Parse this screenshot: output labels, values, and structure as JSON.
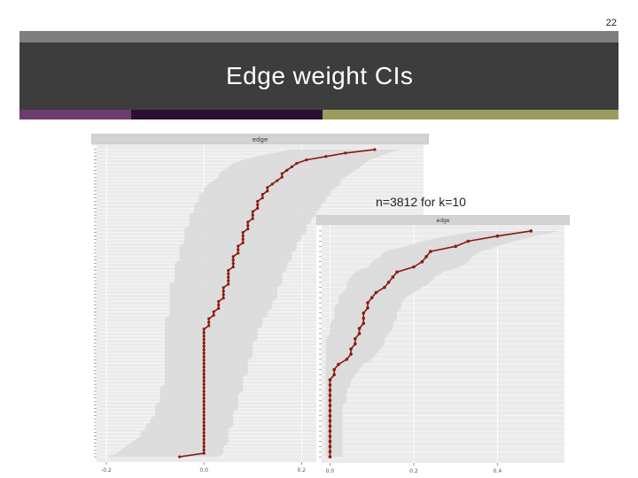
{
  "slide": {
    "page_number": "22",
    "title": "Edge weight CIs",
    "annotation": "n=3812 for k=10",
    "colors": {
      "title_band": "#3d3d3d",
      "title_topstrip": "#7f7f7f",
      "accent_purple": "#6e3b6e",
      "accent_dark": "#2b1033",
      "accent_olive": "#9c9c60",
      "estimate_line": "#8b1a10",
      "ci_band": "#d9d9d9",
      "panel_bg": "#ebebeb",
      "strip_bg": "#d3d3d3"
    }
  },
  "chart_data": [
    {
      "type": "line",
      "panel": "edge",
      "strip_label": "edge",
      "x_ticks": [
        "-0.2",
        "0.0",
        "0.2"
      ],
      "xlim": [
        -0.22,
        0.45
      ],
      "n_edges": 90,
      "series": [
        {
          "values": [
            0.35,
            0.29,
            0.25,
            0.21,
            0.19,
            0.18,
            0.17,
            0.16,
            0.16,
            0.15,
            0.14,
            0.13,
            0.13,
            0.12,
            0.12,
            0.11,
            0.11,
            0.11,
            0.1,
            0.1,
            0.1,
            0.09,
            0.09,
            0.09,
            0.08,
            0.08,
            0.08,
            0.08,
            0.07,
            0.07,
            0.07,
            0.06,
            0.06,
            0.06,
            0.06,
            0.05,
            0.05,
            0.05,
            0.05,
            0.05,
            0.04,
            0.04,
            0.04,
            0.04,
            0.03,
            0.03,
            0.03,
            0.02,
            0.02,
            0.01,
            0.01,
            0.01,
            0.0,
            0.0,
            0.0,
            0.0,
            0.0,
            0.0,
            0.0,
            0.0,
            0.0,
            0.0,
            0.0,
            0.0,
            0.0,
            0.0,
            0.0,
            0.0,
            0.0,
            0.0,
            0.0,
            0.0,
            0.0,
            0.0,
            0.0,
            0.0,
            0.0,
            0.0,
            0.0,
            0.0,
            0.0,
            0.0,
            0.0,
            0.0,
            0.0,
            0.0,
            0.0,
            0.0,
            0.0,
            -0.05
          ],
          "lower": [
            0.18,
            0.14,
            0.11,
            0.08,
            0.06,
            0.05,
            0.04,
            0.03,
            0.03,
            0.02,
            0.01,
            0.0,
            0.0,
            -0.01,
            -0.01,
            -0.01,
            -0.02,
            -0.02,
            -0.02,
            -0.03,
            -0.03,
            -0.03,
            -0.03,
            -0.04,
            -0.04,
            -0.04,
            -0.04,
            -0.04,
            -0.05,
            -0.05,
            -0.05,
            -0.05,
            -0.05,
            -0.06,
            -0.06,
            -0.06,
            -0.06,
            -0.06,
            -0.06,
            -0.07,
            -0.07,
            -0.07,
            -0.07,
            -0.07,
            -0.07,
            -0.07,
            -0.07,
            -0.07,
            -0.07,
            -0.08,
            -0.08,
            -0.08,
            -0.08,
            -0.08,
            -0.08,
            -0.08,
            -0.08,
            -0.08,
            -0.08,
            -0.08,
            -0.08,
            -0.08,
            -0.08,
            -0.08,
            -0.08,
            -0.08,
            -0.08,
            -0.08,
            -0.08,
            -0.09,
            -0.09,
            -0.09,
            -0.09,
            -0.09,
            -0.1,
            -0.1,
            -0.1,
            -0.1,
            -0.11,
            -0.11,
            -0.12,
            -0.12,
            -0.13,
            -0.13,
            -0.14,
            -0.15,
            -0.16,
            -0.17,
            -0.18,
            -0.2
          ],
          "upper": [
            0.4,
            0.38,
            0.36,
            0.34,
            0.33,
            0.32,
            0.31,
            0.3,
            0.29,
            0.28,
            0.28,
            0.27,
            0.26,
            0.26,
            0.25,
            0.25,
            0.24,
            0.24,
            0.23,
            0.23,
            0.22,
            0.22,
            0.21,
            0.21,
            0.21,
            0.2,
            0.2,
            0.19,
            0.19,
            0.19,
            0.18,
            0.18,
            0.18,
            0.17,
            0.17,
            0.17,
            0.16,
            0.16,
            0.16,
            0.16,
            0.15,
            0.15,
            0.15,
            0.15,
            0.14,
            0.14,
            0.14,
            0.13,
            0.13,
            0.12,
            0.12,
            0.12,
            0.11,
            0.11,
            0.11,
            0.11,
            0.1,
            0.1,
            0.1,
            0.1,
            0.1,
            0.09,
            0.09,
            0.09,
            0.09,
            0.09,
            0.08,
            0.08,
            0.08,
            0.08,
            0.08,
            0.07,
            0.07,
            0.07,
            0.07,
            0.07,
            0.06,
            0.06,
            0.06,
            0.06,
            0.06,
            0.05,
            0.05,
            0.05,
            0.05,
            0.05,
            0.04,
            0.04,
            0.04,
            0.03
          ]
        }
      ]
    },
    {
      "type": "line",
      "panel": "edge",
      "strip_label": "edge",
      "x_ticks": [
        "0.0",
        "0.2",
        "0.4"
      ],
      "xlim": [
        -0.02,
        0.56
      ],
      "n_edges": 45,
      "series": [
        {
          "values": [
            0.48,
            0.4,
            0.33,
            0.3,
            0.24,
            0.23,
            0.22,
            0.2,
            0.16,
            0.15,
            0.14,
            0.13,
            0.11,
            0.1,
            0.09,
            0.09,
            0.08,
            0.08,
            0.08,
            0.07,
            0.07,
            0.06,
            0.06,
            0.05,
            0.05,
            0.04,
            0.02,
            0.01,
            0.01,
            0.0,
            0.0,
            0.0,
            0.0,
            0.0,
            0.0,
            0.0,
            0.0,
            0.0,
            0.0,
            0.0,
            0.0,
            0.0,
            0.0,
            0.0,
            0.0
          ],
          "lower": [
            0.36,
            0.28,
            0.22,
            0.18,
            0.13,
            0.12,
            0.1,
            0.09,
            0.06,
            0.05,
            0.04,
            0.04,
            0.03,
            0.02,
            0.02,
            0.01,
            0.01,
            0.01,
            0.0,
            0.0,
            0.0,
            -0.01,
            -0.01,
            -0.01,
            -0.01,
            -0.01,
            -0.01,
            -0.01,
            -0.01,
            -0.01,
            -0.01,
            -0.01,
            -0.01,
            -0.01,
            -0.01,
            -0.01,
            -0.01,
            -0.01,
            -0.01,
            -0.01,
            -0.01,
            -0.01,
            -0.01,
            -0.01,
            -0.01
          ],
          "upper": [
            0.55,
            0.49,
            0.44,
            0.4,
            0.36,
            0.34,
            0.33,
            0.31,
            0.27,
            0.25,
            0.24,
            0.22,
            0.2,
            0.18,
            0.17,
            0.17,
            0.16,
            0.16,
            0.15,
            0.15,
            0.14,
            0.13,
            0.13,
            0.12,
            0.11,
            0.1,
            0.08,
            0.07,
            0.06,
            0.05,
            0.05,
            0.04,
            0.04,
            0.04,
            0.03,
            0.03,
            0.03,
            0.03,
            0.03,
            0.03,
            0.03,
            0.03,
            0.03,
            0.03,
            0.03
          ]
        }
      ]
    }
  ]
}
